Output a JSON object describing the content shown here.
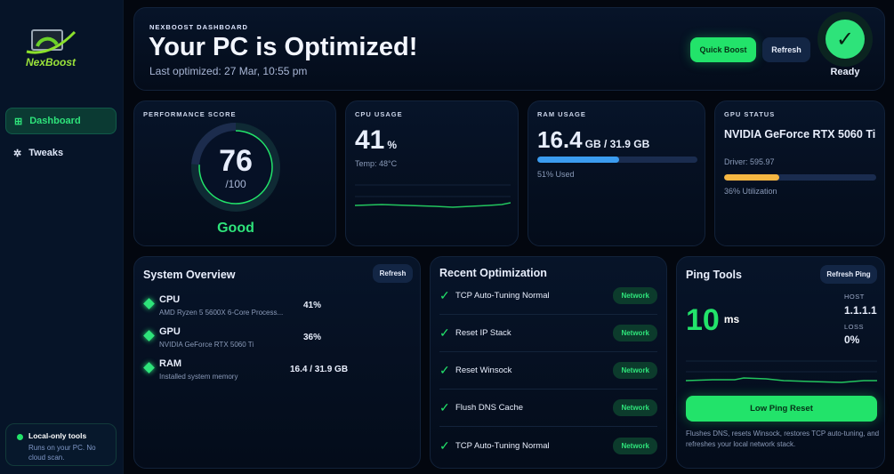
{
  "sidebar": {
    "logo_text": "NexBoost",
    "items": [
      {
        "label": "Dashboard",
        "icon": "grid-icon",
        "active": true
      },
      {
        "label": "Tweaks",
        "icon": "sparkle-icon",
        "active": false
      }
    ],
    "local": {
      "title": "Local-only tools",
      "text": "Runs on your PC. No cloud scan."
    }
  },
  "header": {
    "eyebrow": "NEXBOOST DASHBOARD",
    "title": "Your PC is Optimized!",
    "subtitle": "Last optimized: 27 Mar, 10:55 pm",
    "quick_boost": "Quick Boost",
    "refresh": "Refresh",
    "status_icon": "✓",
    "status": "Ready"
  },
  "score": {
    "label": "PERFORMANCE SCORE",
    "value": "76",
    "max": "/100",
    "rating": "Good",
    "fraction": 0.76
  },
  "cpu": {
    "label": "CPU USAGE",
    "value": "41",
    "unit": "%",
    "temp": "Temp: 48°C"
  },
  "ram": {
    "label": "RAM USAGE",
    "value": "16.4",
    "unit": "GB / 31.9 GB",
    "used": "51% Used",
    "fraction": 0.51
  },
  "gpu": {
    "label": "GPU STATUS",
    "name": "NVIDIA GeForce RTX 5060 Ti",
    "driver": "Driver: 595.97",
    "util": "36% Utilization",
    "fraction": 0.36
  },
  "overview": {
    "title": "System Overview",
    "refresh": "Refresh",
    "items": [
      {
        "name": "CPU",
        "desc": "AMD Ryzen 5 5600X 6-Core Process...",
        "value": "41%"
      },
      {
        "name": "GPU",
        "desc": "NVIDIA GeForce RTX 5060 Ti",
        "value": "36%"
      },
      {
        "name": "RAM",
        "desc": "Installed system memory",
        "value": "16.4 / 31.9 GB"
      }
    ]
  },
  "recent": {
    "title": "Recent Optimization",
    "items": [
      {
        "label": "TCP Auto-Tuning Normal",
        "tag": "Network"
      },
      {
        "label": "Reset IP Stack",
        "tag": "Network"
      },
      {
        "label": "Reset Winsock",
        "tag": "Network"
      },
      {
        "label": "Flush DNS Cache",
        "tag": "Network"
      },
      {
        "label": "TCP Auto-Tuning Normal",
        "tag": "Network"
      }
    ]
  },
  "ping": {
    "title": "Ping Tools",
    "refresh": "Refresh Ping",
    "value": "10",
    "unit": "ms",
    "host_label": "HOST",
    "host": "1.1.1.1",
    "loss_label": "LOSS",
    "loss": "0%",
    "reset": "Low Ping Reset",
    "desc": "Flushes DNS, resets Winsock, restores TCP auto-tuning, and refreshes your local network stack."
  },
  "colors": {
    "accent": "#22e36a",
    "ram_bar": "#3b9cf0",
    "gpu_bar": "#f5b642"
  }
}
